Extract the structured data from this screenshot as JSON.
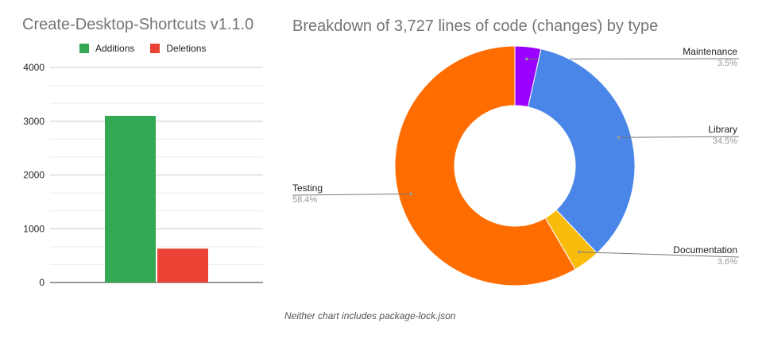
{
  "chart_data": [
    {
      "type": "bar",
      "title": "Create-Desktop-Shortcuts v1.1.0",
      "categories": [
        ""
      ],
      "series": [
        {
          "name": "Additions",
          "values": [
            3100
          ],
          "color": "#34a853"
        },
        {
          "name": "Deletions",
          "values": [
            630
          ],
          "color": "#ea4335"
        }
      ],
      "ylim": [
        0,
        4000
      ],
      "yticks": [
        0,
        1000,
        2000,
        3000,
        4000
      ],
      "grid": true,
      "legend": "top"
    },
    {
      "type": "pie",
      "donut": true,
      "title": "Breakdown of 3,727 lines of code (changes) by type",
      "slices": [
        {
          "label": "Maintenance",
          "value": 3.5,
          "pct": "3.5%",
          "color": "#9900ff"
        },
        {
          "label": "Library",
          "value": 34.5,
          "pct": "34.5%",
          "color": "#4a86e8"
        },
        {
          "label": "Documentation",
          "value": 3.6,
          "pct": "3.6%",
          "color": "#f9bc0a"
        },
        {
          "label": "Testing",
          "value": 58.4,
          "pct": "58.4%",
          "color": "#ff6d01"
        }
      ]
    }
  ],
  "footnote": "Neither chart includes package-lock.json"
}
